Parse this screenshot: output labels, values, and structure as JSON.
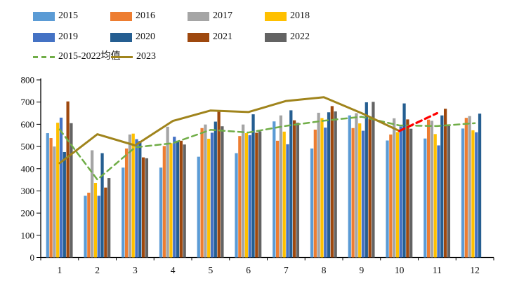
{
  "chart_data": {
    "type": "bar",
    "subtype": "grouped-bars-with-line-overlays",
    "title": "",
    "xlabel": "",
    "ylabel": "",
    "categories": [
      "1",
      "2",
      "3",
      "4",
      "5",
      "6",
      "7",
      "8",
      "9",
      "10",
      "11",
      "12"
    ],
    "ylim": [
      0,
      800
    ],
    "yticks": [
      0,
      100,
      200,
      300,
      400,
      500,
      600,
      700,
      800
    ],
    "grid": false,
    "legend_position": "top-left",
    "series": [
      {
        "name": "2015",
        "type": "bar",
        "color": "#5B9BD5",
        "values": [
          560,
          278,
          405,
          405,
          454,
          470,
          613,
          491,
          640,
          527,
          536,
          581
        ]
      },
      {
        "name": "2016",
        "type": "bar",
        "color": "#ED7D31",
        "values": [
          538,
          292,
          491,
          502,
          583,
          547,
          526,
          576,
          583,
          554,
          621,
          629
        ]
      },
      {
        "name": "2017",
        "type": "bar",
        "color": "#A5A5A5",
        "values": [
          500,
          483,
          554,
          589,
          599,
          599,
          640,
          652,
          650,
          627,
          616,
          637
        ]
      },
      {
        "name": "2018",
        "type": "bar",
        "color": "#FFC000",
        "values": [
          607,
          336,
          558,
          515,
          535,
          560,
          567,
          628,
          604,
          565,
          556,
          573
        ]
      },
      {
        "name": "2019",
        "type": "bar",
        "color": "#4472C4",
        "values": [
          630,
          278,
          533,
          544,
          562,
          551,
          510,
          585,
          571,
          590,
          505,
          564
        ]
      },
      {
        "name": "2020",
        "type": "bar",
        "color": "#255E91",
        "values": [
          475,
          470,
          525,
          526,
          612,
          645,
          663,
          654,
          699,
          694,
          640,
          648
        ]
      },
      {
        "name": "2021",
        "type": "bar",
        "color": "#9E480E",
        "values": [
          703,
          315,
          451,
          526,
          660,
          562,
          618,
          682,
          627,
          622,
          670,
          null
        ]
      },
      {
        "name": "2022",
        "type": "bar",
        "color": "#636363",
        "values": [
          605,
          358,
          447,
          509,
          591,
          568,
          607,
          658,
          701,
          580,
          592,
          null
        ]
      },
      {
        "name": "2015-2022均值",
        "type": "line",
        "dash": true,
        "color": "#70AD47",
        "width": 2.5,
        "values": [
          577,
          351,
          496,
          515,
          575,
          563,
          593,
          616,
          634,
          595,
          592,
          605
        ]
      },
      {
        "name": "2023",
        "type": "line",
        "dash": false,
        "color": "#A0841C",
        "width": 3,
        "values": [
          425,
          555,
          505,
          615,
          662,
          655,
          705,
          722,
          650,
          570,
          null,
          null
        ]
      },
      {
        "name": "",
        "id": "red-dashed-segment",
        "in_legend": false,
        "type": "line",
        "dash": true,
        "color": "#FF0000",
        "width": 3.2,
        "values": [
          null,
          null,
          null,
          null,
          null,
          null,
          null,
          null,
          null,
          570,
          650,
          null
        ]
      }
    ]
  },
  "layout_note": "unlabeled red dashed segment continues the 2023 line from month 10 to month 11"
}
